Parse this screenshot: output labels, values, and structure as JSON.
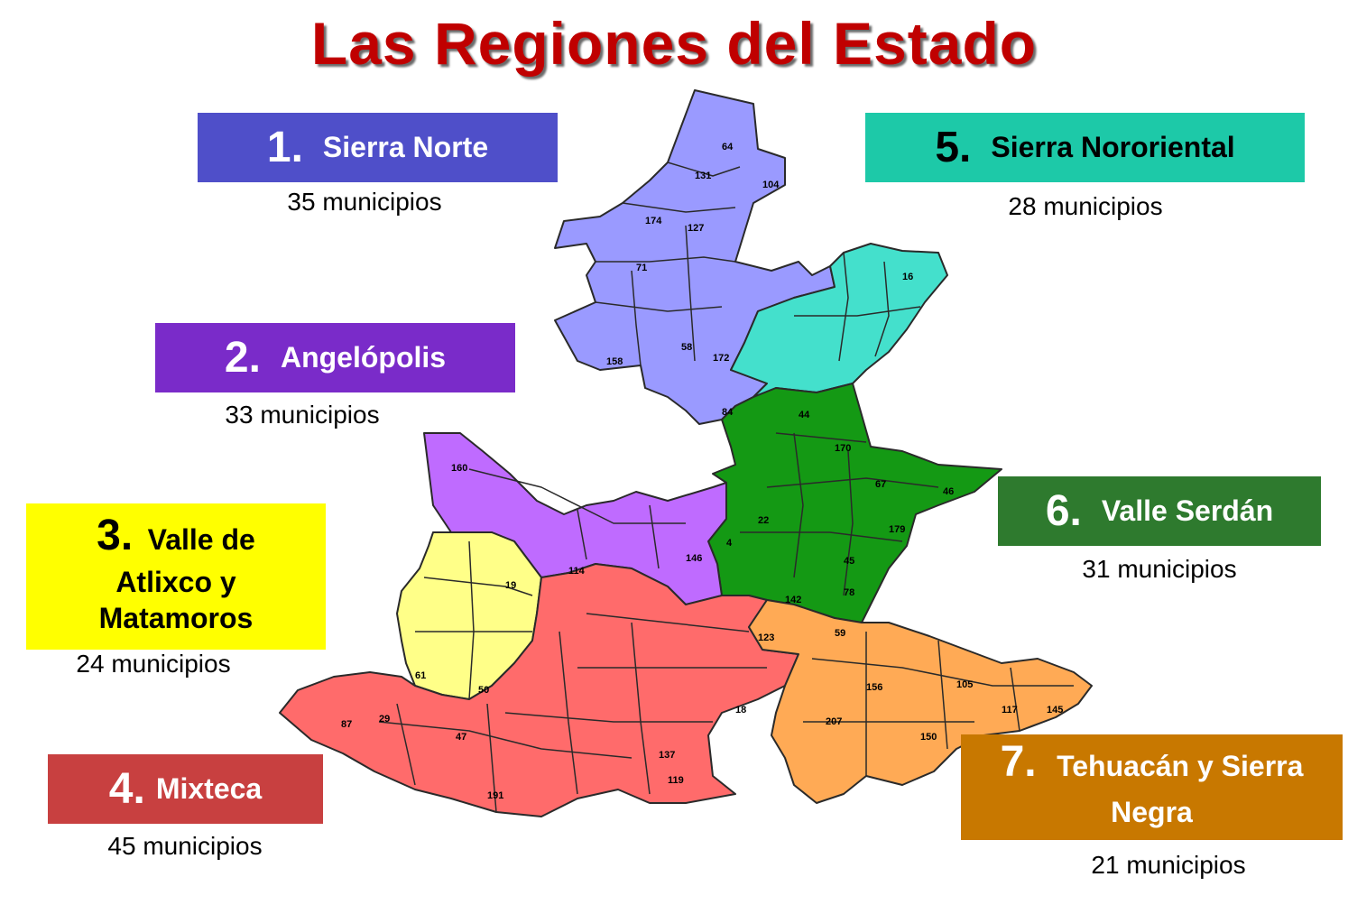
{
  "title": "Las Regiones del Estado",
  "regions": [
    {
      "number": "1.",
      "name": "Sierra Norte",
      "count": "35 municipios",
      "color": "#4f4fc9"
    },
    {
      "number": "2.",
      "name": "Angelópolis",
      "count": "33 municipios",
      "color": "#7a2bc9"
    },
    {
      "number": "3.",
      "name_line1": "Valle de",
      "name_line2": "Atlixco y",
      "name_line3": "Matamoros",
      "count": "24 municipios",
      "color": "#ffff00"
    },
    {
      "number": "4.",
      "name": "Mixteca",
      "count": "45 municipios",
      "color": "#c84040"
    },
    {
      "number": "5.",
      "name": "Sierra Nororiental",
      "count": "28 municipios",
      "color": "#1dc9a8"
    },
    {
      "number": "6.",
      "name": "Valle Serdán",
      "count": "31 municipios",
      "color": "#2e7a2e"
    },
    {
      "number": "7.",
      "name_line1": "Tehuacán y Sierra",
      "name_line2": "Negra",
      "count": "21 municipios",
      "color": "#c87800"
    }
  ],
  "map_fill_colors": {
    "sierra_norte": "#9a9aff",
    "angelopolis": "#bf6bff",
    "atlixco_matamoros": "#ffff88",
    "mixteca": "#ff6b6b",
    "sierra_nororiental": "#44e0cc",
    "valle_serdan": "#149914",
    "tehuacan": "#ffaa55"
  },
  "map_labels": [
    "64",
    "131",
    "104",
    "174",
    "127",
    "71",
    "158",
    "58",
    "172",
    "84",
    "16",
    "44",
    "170",
    "67",
    "46",
    "179",
    "45",
    "78",
    "160",
    "114",
    "19",
    "146",
    "4",
    "22",
    "123",
    "47",
    "29",
    "87",
    "191",
    "61",
    "50",
    "18",
    "137",
    "119",
    "142",
    "59",
    "156",
    "105",
    "117",
    "145",
    "207",
    "150"
  ]
}
